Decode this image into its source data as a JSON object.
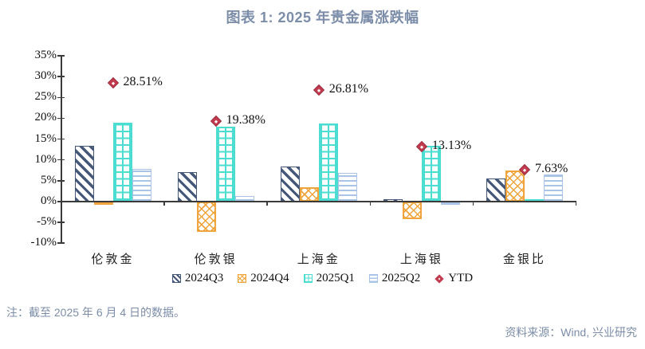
{
  "title": "图表 1: 2025 年贵金属涨跌幅",
  "note": "注：截至 2025 年 6 月 4 日的数据。",
  "source": "资料来源：Wind, 兴业研究",
  "colors": {
    "title_and_notes_text": "#7c8da9",
    "axis": "#3a3a3a",
    "series_2024Q3": "#46587a",
    "series_2024Q4": "#f0a43c",
    "series_2025Q1": "#4bdcd2",
    "series_2025Q2": "#a9c4e6",
    "ytd_marker": "#c23b4f"
  },
  "chart_data": {
    "type": "bar",
    "title": "图表 1: 2025 年贵金属涨跌幅",
    "categories": [
      "伦敦金",
      "伦敦银",
      "上海金",
      "上海银",
      "金银比"
    ],
    "series": [
      {
        "name": "2024Q3",
        "values": [
          13.3,
          7.1,
          8.4,
          0.5,
          5.5
        ]
      },
      {
        "name": "2024Q4",
        "values": [
          -0.4,
          -7.3,
          3.4,
          -4.3,
          7.4
        ]
      },
      {
        "name": "2025Q1",
        "values": [
          18.9,
          17.9,
          18.8,
          13.4,
          0.6
        ]
      },
      {
        "name": "2025Q2",
        "values": [
          7.9,
          1.4,
          6.8,
          -0.8,
          6.5
        ]
      }
    ],
    "marker_series": {
      "name": "YTD",
      "values": [
        28.51,
        19.38,
        26.81,
        13.13,
        7.63
      ],
      "labels": [
        "28.51%",
        "19.38%",
        "26.81%",
        "13.13%",
        "7.63%"
      ]
    },
    "ylabel": "",
    "xlabel": "",
    "ylim": [
      -10,
      35
    ],
    "ytick_step": 5,
    "ytick_labels": [
      "35%",
      "30%",
      "25%",
      "20%",
      "15%",
      "10%",
      "5%",
      "0%",
      "-5%",
      "-10%"
    ],
    "grid": false,
    "legend_position": "bottom"
  }
}
